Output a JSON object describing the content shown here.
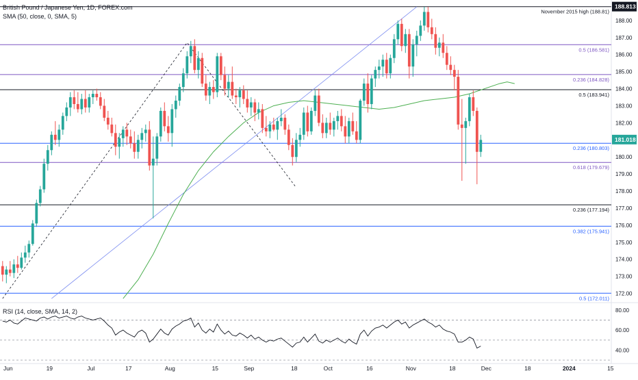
{
  "legend": {
    "symbol_line": "British Pound / Japanese Yen, 1D, FOREX.com",
    "sma_line": "SMA (50, close, 0, SMA, 5)",
    "rsi_line": "RSI (14, close, SMA, 14, 2)"
  },
  "price_badges": {
    "high": "188.813",
    "last": "181.018",
    "high_color": "#131722",
    "last_color": "#26a69a"
  },
  "colors": {
    "up": "#26a69a",
    "down": "#ef5350",
    "sma": "#4caf50",
    "rsi": "#131722",
    "fib_black": "#131722",
    "fib_purple": "#7e57c2",
    "fib_blue": "#2962ff",
    "trend_dashed": "#131722",
    "trend_blue": "#7b8cf0"
  },
  "chart_data": [
    {
      "type": "candlestick",
      "title": "British Pound / Japanese Yen, 1D, FOREX.com",
      "x_tick_labels": [
        "Jun",
        "19",
        "Jul",
        "17",
        "Aug",
        "15",
        "Sep",
        "18",
        "Oct",
        "16",
        "Nov",
        "18",
        "Dec",
        "18",
        "2024",
        "15"
      ],
      "y_ticks": [
        172,
        173,
        174,
        175,
        176,
        177,
        178,
        179,
        180,
        181,
        182,
        183,
        184,
        185,
        186,
        187,
        188
      ],
      "ylim": [
        171.5,
        189.2
      ],
      "levels": [
        {
          "label": "November 2015 high (188.81)",
          "value": 188.81,
          "color": "black"
        },
        {
          "label": "0.5 (186.581)",
          "value": 186.581,
          "color": "purple"
        },
        {
          "label": "0.236 (184.828)",
          "value": 184.828,
          "color": "purple"
        },
        {
          "label": "0.5 (183.941)",
          "value": 183.941,
          "color": "black"
        },
        {
          "label": "0.236 (180.803)",
          "value": 180.803,
          "color": "blue"
        },
        {
          "label": "0.618 (179.679)",
          "value": 179.679,
          "color": "purple"
        },
        {
          "label": "0.236 (177.194)",
          "value": 177.194,
          "color": "black"
        },
        {
          "label": "0.382 (175.941)",
          "value": 175.941,
          "color": "blue"
        },
        {
          "label": "0.5 (172.011)",
          "value": 172.011,
          "color": "blue"
        }
      ],
      "trend_lines": [
        {
          "style": "dashed",
          "points": [
            [
              0,
              171.7
            ],
            [
              49,
              186.7
            ],
            [
              78,
              178.2
            ]
          ]
        },
        {
          "style": "solid-blue",
          "points": [
            [
              13,
              171.7
            ],
            [
              110,
              188.8
            ]
          ]
        }
      ],
      "candles": [
        [
          173.6,
          173.9,
          172.7,
          173.1
        ],
        [
          173.1,
          173.6,
          172.6,
          173.4
        ],
        [
          173.4,
          173.9,
          173.0,
          173.2
        ],
        [
          173.2,
          174.0,
          172.9,
          173.7
        ],
        [
          173.7,
          174.2,
          173.2,
          173.5
        ],
        [
          173.5,
          174.4,
          173.4,
          174.1
        ],
        [
          174.1,
          174.8,
          173.8,
          174.4
        ],
        [
          174.4,
          175.1,
          174.1,
          174.9
        ],
        [
          174.9,
          176.3,
          174.8,
          176.1
        ],
        [
          176.1,
          177.5,
          175.9,
          177.3
        ],
        [
          177.3,
          178.3,
          177.1,
          178.1
        ],
        [
          178.1,
          179.9,
          177.9,
          179.6
        ],
        [
          179.6,
          180.7,
          179.2,
          180.4
        ],
        [
          180.4,
          181.5,
          180.1,
          181.3
        ],
        [
          181.3,
          182.1,
          180.7,
          181.0
        ],
        [
          181.0,
          181.9,
          180.6,
          181.6
        ],
        [
          181.6,
          182.6,
          181.3,
          182.4
        ],
        [
          182.4,
          183.2,
          182.1,
          182.9
        ],
        [
          182.9,
          183.8,
          182.4,
          183.5
        ],
        [
          183.5,
          183.9,
          182.8,
          183.1
        ],
        [
          183.1,
          183.8,
          182.6,
          182.8
        ],
        [
          182.8,
          183.7,
          182.5,
          183.4
        ],
        [
          183.4,
          183.9,
          182.6,
          182.9
        ],
        [
          182.9,
          183.7,
          182.6,
          183.5
        ],
        [
          183.5,
          183.9,
          183.1,
          183.7
        ],
        [
          183.7,
          184.0,
          183.3,
          183.5
        ],
        [
          183.5,
          183.8,
          182.8,
          183.0
        ],
        [
          183.0,
          183.4,
          182.1,
          182.3
        ],
        [
          182.3,
          182.7,
          181.6,
          181.9
        ],
        [
          181.9,
          182.3,
          181.2,
          181.4
        ],
        [
          181.4,
          181.9,
          180.1,
          180.6
        ],
        [
          180.6,
          181.4,
          179.9,
          181.1
        ],
        [
          181.1,
          181.8,
          180.6,
          181.6
        ],
        [
          181.6,
          182.0,
          180.7,
          181.2
        ],
        [
          181.2,
          181.6,
          180.5,
          180.8
        ],
        [
          180.8,
          181.5,
          179.9,
          180.3
        ],
        [
          180.3,
          181.3,
          179.9,
          181.0
        ],
        [
          181.0,
          181.7,
          180.5,
          181.4
        ],
        [
          181.4,
          181.9,
          180.9,
          181.6
        ],
        [
          181.6,
          182.1,
          179.2,
          179.5
        ],
        [
          179.5,
          181.2,
          176.4,
          179.9
        ],
        [
          179.9,
          181.4,
          179.5,
          181.2
        ],
        [
          181.2,
          182.9,
          180.9,
          182.7
        ],
        [
          182.7,
          183.2,
          181.5,
          181.8
        ],
        [
          181.8,
          182.4,
          180.9,
          181.4
        ],
        [
          181.4,
          183.1,
          180.6,
          182.8
        ],
        [
          182.8,
          183.6,
          182.3,
          183.3
        ],
        [
          183.3,
          184.3,
          183.0,
          184.1
        ],
        [
          184.1,
          185.2,
          183.8,
          184.9
        ],
        [
          184.9,
          186.2,
          184.6,
          185.9
        ],
        [
          185.9,
          186.8,
          185.5,
          186.5
        ],
        [
          186.5,
          186.9,
          184.9,
          185.1
        ],
        [
          185.1,
          186.2,
          184.6,
          185.8
        ],
        [
          185.8,
          186.1,
          184.1,
          184.3
        ],
        [
          184.3,
          184.8,
          183.3,
          183.6
        ],
        [
          183.6,
          184.4,
          183.1,
          184.1
        ],
        [
          184.1,
          184.5,
          183.4,
          183.8
        ],
        [
          183.8,
          186.1,
          183.5,
          185.9
        ],
        [
          185.9,
          186.1,
          184.5,
          184.8
        ],
        [
          184.8,
          185.3,
          183.6,
          184.0
        ],
        [
          184.0,
          184.8,
          183.5,
          184.4
        ],
        [
          184.4,
          185.3,
          183.4,
          183.6
        ],
        [
          183.6,
          184.0,
          183.1,
          183.5
        ],
        [
          183.5,
          184.1,
          182.9,
          183.9
        ],
        [
          183.9,
          184.2,
          183.1,
          183.4
        ],
        [
          183.4,
          183.9,
          182.6,
          182.9
        ],
        [
          182.9,
          183.5,
          182.4,
          183.2
        ],
        [
          183.2,
          183.4,
          182.1,
          182.6
        ],
        [
          182.6,
          183.2,
          182.2,
          182.8
        ],
        [
          182.8,
          183.1,
          181.4,
          181.7
        ],
        [
          181.7,
          182.4,
          181.2,
          181.5
        ],
        [
          181.5,
          182.1,
          181.1,
          181.9
        ],
        [
          181.9,
          182.3,
          181.5,
          181.6
        ],
        [
          181.6,
          182.3,
          181.0,
          182.1
        ],
        [
          182.1,
          182.8,
          181.8,
          182.3
        ],
        [
          182.3,
          182.5,
          181.3,
          181.6
        ],
        [
          181.6,
          181.9,
          180.4,
          180.7
        ],
        [
          180.7,
          181.1,
          179.5,
          180.0
        ],
        [
          180.0,
          181.4,
          179.7,
          181.0
        ],
        [
          181.0,
          181.7,
          180.6,
          181.3
        ],
        [
          181.3,
          182.9,
          181.0,
          182.6
        ],
        [
          182.6,
          183.0,
          181.2,
          181.5
        ],
        [
          181.5,
          182.9,
          181.3,
          182.7
        ],
        [
          182.7,
          183.9,
          182.4,
          183.6
        ],
        [
          183.6,
          184.0,
          181.8,
          182.0
        ],
        [
          182.0,
          182.5,
          181.1,
          181.4
        ],
        [
          181.4,
          182.3,
          181.1,
          182.0
        ],
        [
          182.0,
          182.6,
          181.3,
          181.6
        ],
        [
          181.6,
          182.3,
          181.2,
          182.1
        ],
        [
          182.1,
          182.7,
          181.6,
          182.4
        ],
        [
          182.4,
          182.8,
          181.5,
          181.8
        ],
        [
          181.8,
          182.4,
          180.8,
          181.2
        ],
        [
          181.2,
          182.3,
          180.8,
          182.1
        ],
        [
          182.1,
          182.6,
          181.3,
          181.5
        ],
        [
          181.5,
          182.1,
          180.8,
          181.0
        ],
        [
          181.0,
          183.4,
          180.8,
          183.3
        ],
        [
          183.3,
          184.6,
          183.0,
          184.3
        ],
        [
          184.3,
          184.9,
          182.6,
          183.1
        ],
        [
          183.1,
          184.8,
          182.8,
          184.6
        ],
        [
          184.6,
          185.3,
          184.1,
          185.1
        ],
        [
          185.1,
          185.7,
          184.6,
          185.3
        ],
        [
          185.3,
          186.0,
          184.7,
          185.7
        ],
        [
          185.7,
          186.1,
          184.6,
          184.9
        ],
        [
          184.9,
          186.0,
          184.6,
          185.8
        ],
        [
          185.8,
          187.2,
          185.5,
          186.9
        ],
        [
          186.9,
          188.0,
          186.6,
          187.8
        ],
        [
          187.8,
          188.1,
          186.2,
          186.5
        ],
        [
          186.5,
          187.5,
          186.1,
          187.2
        ],
        [
          187.2,
          187.5,
          184.6,
          185.3
        ],
        [
          185.3,
          186.9,
          184.7,
          186.6
        ],
        [
          186.6,
          187.4,
          185.9,
          187.1
        ],
        [
          187.1,
          188.0,
          186.8,
          187.7
        ],
        [
          187.7,
          188.8,
          187.4,
          188.5
        ],
        [
          188.5,
          188.8,
          187.3,
          187.6
        ],
        [
          187.6,
          188.1,
          186.9,
          187.2
        ],
        [
          187.2,
          187.6,
          186.0,
          186.4
        ],
        [
          186.4,
          187.0,
          185.9,
          186.7
        ],
        [
          186.7,
          187.2,
          185.8,
          186.1
        ],
        [
          186.1,
          186.5,
          185.1,
          185.4
        ],
        [
          185.4,
          185.9,
          184.8,
          185.1
        ],
        [
          185.1,
          185.4,
          183.9,
          184.7
        ],
        [
          184.7,
          185.1,
          181.6,
          181.9
        ],
        [
          181.9,
          183.4,
          178.6,
          181.7
        ],
        [
          181.7,
          182.3,
          179.6,
          182.1
        ],
        [
          182.1,
          183.7,
          181.8,
          183.5
        ],
        [
          183.5,
          183.9,
          182.4,
          182.7
        ],
        [
          182.7,
          182.9,
          178.4,
          180.3
        ],
        [
          180.3,
          181.3,
          180.0,
          181.0
        ]
      ],
      "sma50": [
        [
          32,
          171.7
        ],
        [
          36,
          172.8
        ],
        [
          40,
          174.3
        ],
        [
          44,
          176.1
        ],
        [
          48,
          177.8
        ],
        [
          52,
          179.2
        ],
        [
          56,
          180.3
        ],
        [
          60,
          181.2
        ],
        [
          64,
          182.0
        ],
        [
          68,
          182.6
        ],
        [
          72,
          183.0
        ],
        [
          76,
          183.2
        ],
        [
          80,
          183.3
        ],
        [
          84,
          183.2
        ],
        [
          88,
          183.1
        ],
        [
          92,
          183.0
        ],
        [
          96,
          182.9
        ],
        [
          100,
          182.8
        ],
        [
          104,
          182.9
        ],
        [
          108,
          183.1
        ],
        [
          112,
          183.3
        ],
        [
          116,
          183.4
        ],
        [
          120,
          183.5
        ],
        [
          124,
          183.7
        ],
        [
          128,
          184.0
        ],
        [
          132,
          184.3
        ],
        [
          134,
          184.4
        ],
        [
          136,
          184.3
        ]
      ],
      "rsi": {
        "ylim": [
          30,
          86
        ],
        "y_ticks": [
          40.0,
          60.0,
          80.0
        ],
        "levels": [
          70,
          50,
          30
        ],
        "values": [
          69,
          68,
          70,
          67,
          66,
          69,
          72,
          71,
          70,
          69,
          72,
          73,
          71,
          73,
          74,
          72,
          73,
          74,
          72,
          71,
          73,
          74,
          72,
          71,
          70,
          71,
          72,
          69,
          65,
          62,
          55,
          58,
          60,
          57,
          55,
          53,
          58,
          60,
          57,
          48,
          51,
          56,
          61,
          57,
          55,
          61,
          64,
          66,
          69,
          70,
          72,
          63,
          67,
          60,
          57,
          61,
          58,
          66,
          60,
          56,
          59,
          55,
          54,
          57,
          55,
          52,
          55,
          51,
          53,
          50,
          48,
          50,
          49,
          51,
          52,
          49,
          46,
          43,
          47,
          48,
          53,
          48,
          52,
          56,
          49,
          47,
          50,
          48,
          50,
          52,
          49,
          47,
          51,
          48,
          46,
          56,
          60,
          54,
          59,
          62,
          63,
          65,
          62,
          65,
          68,
          70,
          66,
          68,
          62,
          65,
          67,
          69,
          71,
          68,
          66,
          63,
          65,
          61,
          59,
          58,
          56,
          48,
          48,
          50,
          53,
          51,
          42,
          44
        ]
      }
    }
  ]
}
